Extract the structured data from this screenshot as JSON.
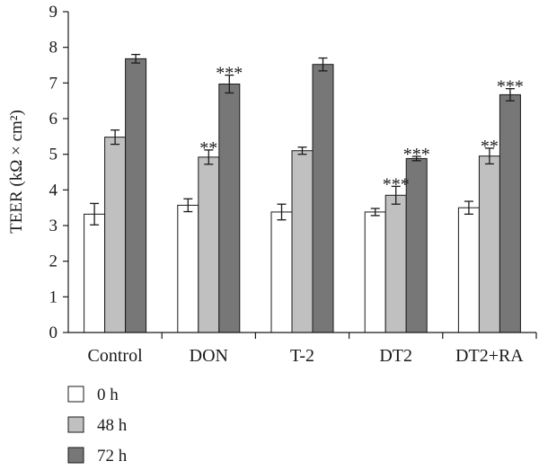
{
  "chart_data": {
    "type": "bar",
    "ylabel": "TEER (kΩ × cm²)",
    "ylim": [
      0,
      9
    ],
    "yticks": [
      "0",
      "1",
      "2",
      "3",
      "4",
      "5",
      "6",
      "7",
      "8",
      "9"
    ],
    "categories": [
      "Control",
      "DON",
      "T-2",
      "DT2",
      "DT2+RA"
    ],
    "series": [
      {
        "name": "0 h",
        "color": "#ffffff",
        "values": [
          3.32,
          3.57,
          3.38,
          3.38,
          3.5
        ],
        "errors": [
          0.3,
          0.18,
          0.22,
          0.1,
          0.18
        ],
        "annotations": [
          "",
          "",
          "",
          "",
          ""
        ]
      },
      {
        "name": "48 h",
        "color": "#c0c0c0",
        "values": [
          5.48,
          4.92,
          5.1,
          3.85,
          4.95
        ],
        "errors": [
          0.2,
          0.2,
          0.1,
          0.25,
          0.22
        ],
        "annotations": [
          "",
          "**",
          "",
          "***",
          "**"
        ]
      },
      {
        "name": "72 h",
        "color": "#777777",
        "values": [
          7.68,
          6.97,
          7.52,
          4.88,
          6.67
        ],
        "errors": [
          0.12,
          0.25,
          0.18,
          0.06,
          0.17
        ],
        "annotations": [
          "",
          "***",
          "",
          "***",
          "***"
        ]
      }
    ],
    "grid": false,
    "legend_position": "bottom-left"
  }
}
